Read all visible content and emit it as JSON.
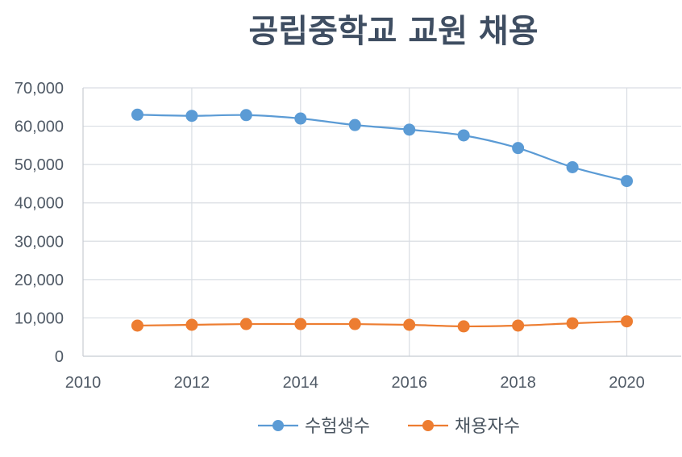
{
  "chart_data": {
    "type": "line",
    "title": "공립중학교 교원 채용",
    "xlabel": "",
    "ylabel": "",
    "xlim": [
      2010,
      2021
    ],
    "ylim": [
      0,
      70000
    ],
    "x_ticks": [
      2010,
      2012,
      2014,
      2016,
      2018,
      2020
    ],
    "x_tick_labels": [
      "2010",
      "2012",
      "2014",
      "2016",
      "2018",
      "2020"
    ],
    "y_ticks": [
      0,
      10000,
      20000,
      30000,
      40000,
      50000,
      60000,
      70000
    ],
    "y_tick_labels": [
      "0",
      "10,000",
      "20,000",
      "30,000",
      "40,000",
      "50,000",
      "60,000",
      "70,000"
    ],
    "grid": true,
    "legend_position": "bottom",
    "x": [
      2011,
      2012,
      2013,
      2014,
      2015,
      2016,
      2017,
      2018,
      2019,
      2020
    ],
    "series": [
      {
        "name": "수험생수",
        "color": "#5b9bd5",
        "values": [
          63000,
          62700,
          62900,
          62000,
          60300,
          59100,
          57600,
          54300,
          49300,
          45700
        ]
      },
      {
        "name": "채용자수",
        "color": "#ed7d31",
        "values": [
          8000,
          8200,
          8400,
          8400,
          8400,
          8200,
          7800,
          8000,
          8600,
          9100
        ]
      }
    ]
  }
}
